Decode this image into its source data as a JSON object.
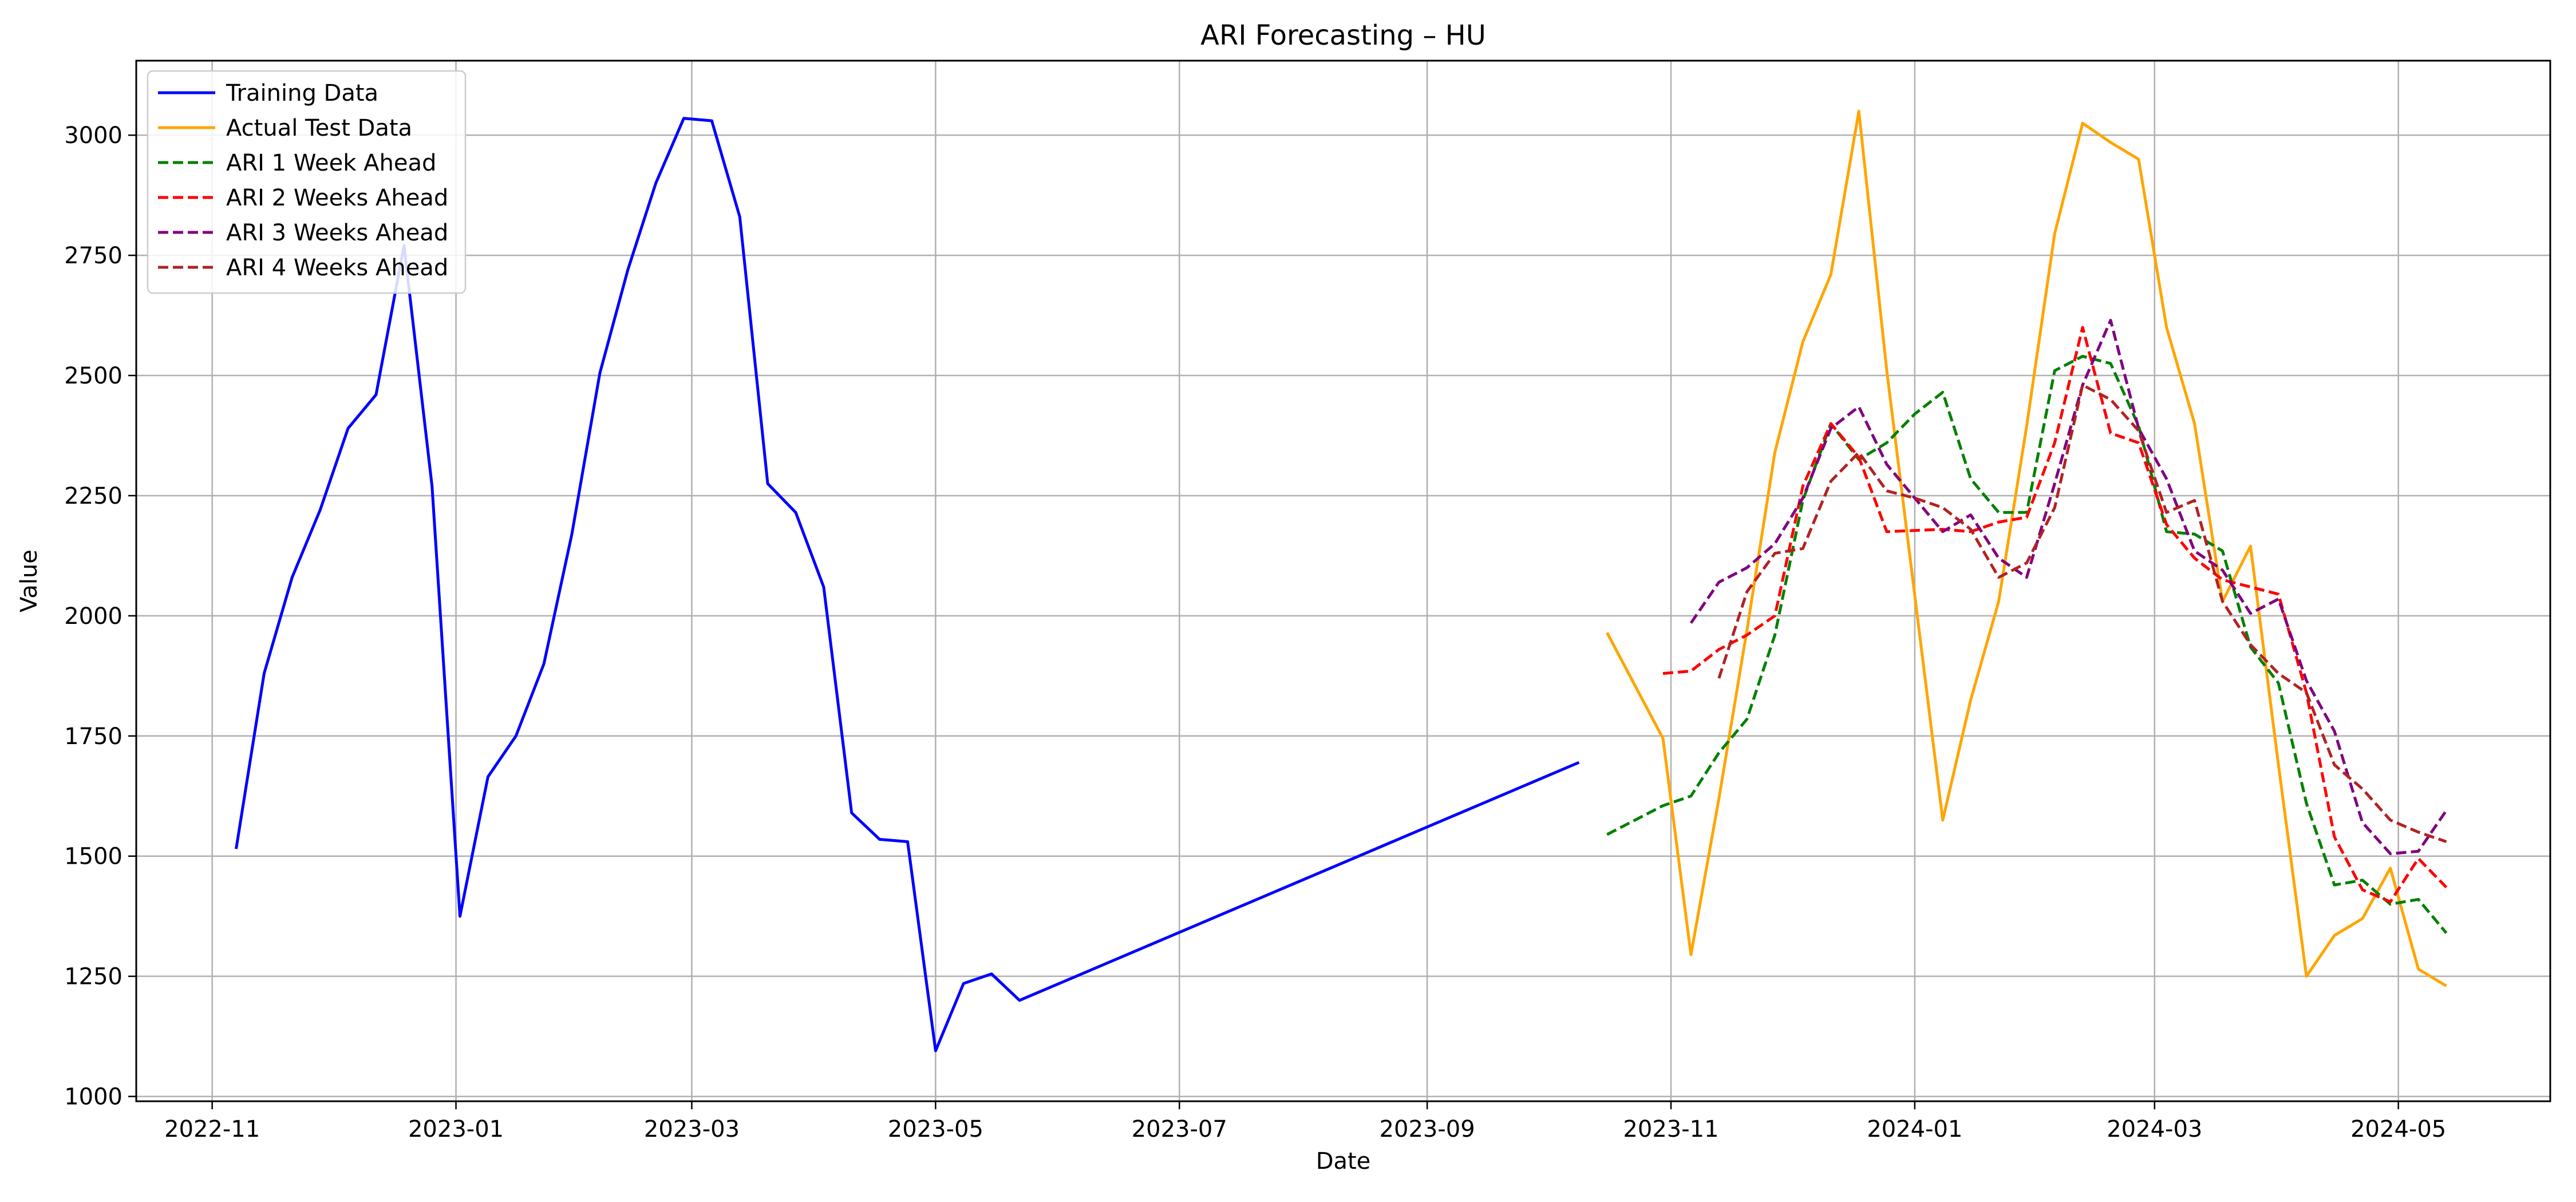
{
  "chart_data": {
    "type": "line",
    "title": "ARI Forecasting – HU",
    "xlabel": "Date",
    "ylabel": "Value",
    "x_is_date": true,
    "xlim": [
      "2022-10-13",
      "2024-06-08"
    ],
    "ylim": [
      990,
      3155
    ],
    "grid": true,
    "legend_position": "top-left",
    "x_ticks": [
      {
        "date": "2022-11-01",
        "label": "2022-11"
      },
      {
        "date": "2023-01-01",
        "label": "2023-01"
      },
      {
        "date": "2023-03-01",
        "label": "2023-03"
      },
      {
        "date": "2023-05-01",
        "label": "2023-05"
      },
      {
        "date": "2023-07-01",
        "label": "2023-07"
      },
      {
        "date": "2023-09-01",
        "label": "2023-09"
      },
      {
        "date": "2023-11-01",
        "label": "2023-11"
      },
      {
        "date": "2024-01-01",
        "label": "2024-01"
      },
      {
        "date": "2024-03-01",
        "label": "2024-03"
      },
      {
        "date": "2024-05-01",
        "label": "2024-05"
      }
    ],
    "y_ticks": [
      {
        "value": 1000,
        "label": "1000"
      },
      {
        "value": 1250,
        "label": "1250"
      },
      {
        "value": 1500,
        "label": "1500"
      },
      {
        "value": 1750,
        "label": "1750"
      },
      {
        "value": 2000,
        "label": "2000"
      },
      {
        "value": 2250,
        "label": "2250"
      },
      {
        "value": 2500,
        "label": "2500"
      },
      {
        "value": 2750,
        "label": "2750"
      },
      {
        "value": 3000,
        "label": "3000"
      }
    ],
    "series": [
      {
        "name": "Training Data",
        "color": "#0000ff",
        "dashed": false,
        "points": [
          [
            "2022-11-07",
            1515
          ],
          [
            "2022-11-14",
            1880
          ],
          [
            "2022-11-21",
            2080
          ],
          [
            "2022-11-28",
            2220
          ],
          [
            "2022-12-05",
            2390
          ],
          [
            "2022-12-12",
            2460
          ],
          [
            "2022-12-19",
            2770
          ],
          [
            "2022-12-26",
            2270
          ],
          [
            "2023-01-02",
            1375
          ],
          [
            "2023-01-09",
            1665
          ],
          [
            "2023-01-16",
            1750
          ],
          [
            "2023-01-23",
            1900
          ],
          [
            "2023-01-30",
            2170
          ],
          [
            "2023-02-06",
            2505
          ],
          [
            "2023-02-13",
            2720
          ],
          [
            "2023-02-20",
            2900
          ],
          [
            "2023-02-27",
            3035
          ],
          [
            "2023-03-06",
            3030
          ],
          [
            "2023-03-13",
            2830
          ],
          [
            "2023-03-20",
            2275
          ],
          [
            "2023-03-27",
            2215
          ],
          [
            "2023-04-03",
            2060
          ],
          [
            "2023-04-10",
            1590
          ],
          [
            "2023-04-17",
            1535
          ],
          [
            "2023-04-24",
            1530
          ],
          [
            "2023-05-01",
            1095
          ],
          [
            "2023-05-08",
            1235
          ],
          [
            "2023-05-15",
            1255
          ],
          [
            "2023-05-22",
            1200
          ],
          [
            "2023-10-09",
            1695
          ]
        ]
      },
      {
        "name": "Actual Test Data",
        "color": "#ffa500",
        "dashed": false,
        "points": [
          [
            "2023-10-16",
            1965
          ],
          [
            "2023-10-30",
            1745
          ],
          [
            "2023-11-06",
            1295
          ],
          [
            "2023-11-13",
            1620
          ],
          [
            "2023-11-20",
            1970
          ],
          [
            "2023-11-27",
            2340
          ],
          [
            "2023-12-04",
            2570
          ],
          [
            "2023-12-11",
            2710
          ],
          [
            "2023-12-18",
            3050
          ],
          [
            "2023-12-25",
            2510
          ],
          [
            "2024-01-08",
            1575
          ],
          [
            "2024-01-15",
            1825
          ],
          [
            "2024-01-22",
            2030
          ],
          [
            "2024-01-29",
            2395
          ],
          [
            "2024-02-05",
            2795
          ],
          [
            "2024-02-12",
            3025
          ],
          [
            "2024-02-19",
            2985
          ],
          [
            "2024-02-26",
            2950
          ],
          [
            "2024-03-04",
            2600
          ],
          [
            "2024-03-11",
            2400
          ],
          [
            "2024-03-18",
            2030
          ],
          [
            "2024-03-25",
            2145
          ],
          [
            "2024-04-01",
            1690
          ],
          [
            "2024-04-08",
            1250
          ],
          [
            "2024-04-15",
            1335
          ],
          [
            "2024-04-22",
            1370
          ],
          [
            "2024-04-29",
            1475
          ],
          [
            "2024-05-06",
            1265
          ],
          [
            "2024-05-13",
            1230
          ]
        ]
      },
      {
        "name": "ARI 1 Week Ahead",
        "color": "#008000",
        "dashed": true,
        "points": [
          [
            "2023-10-16",
            1545
          ],
          [
            "2023-10-30",
            1605
          ],
          [
            "2023-11-06",
            1625
          ],
          [
            "2023-11-13",
            1715
          ],
          [
            "2023-11-20",
            1785
          ],
          [
            "2023-11-27",
            1960
          ],
          [
            "2023-12-04",
            2240
          ],
          [
            "2023-12-11",
            2400
          ],
          [
            "2023-12-18",
            2325
          ],
          [
            "2023-12-25",
            2360
          ],
          [
            "2024-01-01",
            2420
          ],
          [
            "2024-01-08",
            2465
          ],
          [
            "2024-01-15",
            2285
          ],
          [
            "2024-01-22",
            2215
          ],
          [
            "2024-01-29",
            2215
          ],
          [
            "2024-02-05",
            2510
          ],
          [
            "2024-02-12",
            2540
          ],
          [
            "2024-02-19",
            2525
          ],
          [
            "2024-02-26",
            2395
          ],
          [
            "2024-03-04",
            2175
          ],
          [
            "2024-03-11",
            2170
          ],
          [
            "2024-03-18",
            2135
          ],
          [
            "2024-03-25",
            1935
          ],
          [
            "2024-04-01",
            1860
          ],
          [
            "2024-04-08",
            1610
          ],
          [
            "2024-04-15",
            1440
          ],
          [
            "2024-04-22",
            1450
          ],
          [
            "2024-04-29",
            1400
          ],
          [
            "2024-05-06",
            1410
          ],
          [
            "2024-05-13",
            1340
          ]
        ]
      },
      {
        "name": "ARI 2 Weeks Ahead",
        "color": "#ff0000",
        "dashed": true,
        "points": [
          [
            "2023-10-30",
            1880
          ],
          [
            "2023-11-06",
            1885
          ],
          [
            "2023-11-13",
            1930
          ],
          [
            "2023-11-20",
            1960
          ],
          [
            "2023-11-27",
            2000
          ],
          [
            "2023-12-04",
            2270
          ],
          [
            "2023-12-11",
            2400
          ],
          [
            "2023-12-18",
            2330
          ],
          [
            "2023-12-25",
            2175
          ],
          [
            "2024-01-08",
            2180
          ],
          [
            "2024-01-15",
            2175
          ],
          [
            "2024-01-22",
            2195
          ],
          [
            "2024-01-29",
            2205
          ],
          [
            "2024-02-05",
            2360
          ],
          [
            "2024-02-12",
            2600
          ],
          [
            "2024-02-19",
            2380
          ],
          [
            "2024-02-26",
            2360
          ],
          [
            "2024-03-04",
            2190
          ],
          [
            "2024-03-11",
            2120
          ],
          [
            "2024-03-18",
            2075
          ],
          [
            "2024-03-25",
            2060
          ],
          [
            "2024-04-01",
            2045
          ],
          [
            "2024-04-08",
            1840
          ],
          [
            "2024-04-15",
            1540
          ],
          [
            "2024-04-22",
            1430
          ],
          [
            "2024-04-29",
            1405
          ],
          [
            "2024-05-06",
            1495
          ],
          [
            "2024-05-13",
            1435
          ]
        ]
      },
      {
        "name": "ARI 3 Weeks Ahead",
        "color": "#800080",
        "dashed": true,
        "points": [
          [
            "2023-11-06",
            1985
          ],
          [
            "2023-11-13",
            2070
          ],
          [
            "2023-11-20",
            2100
          ],
          [
            "2023-11-27",
            2150
          ],
          [
            "2023-12-04",
            2245
          ],
          [
            "2023-12-11",
            2390
          ],
          [
            "2023-12-18",
            2435
          ],
          [
            "2023-12-25",
            2315
          ],
          [
            "2024-01-01",
            2245
          ],
          [
            "2024-01-08",
            2175
          ],
          [
            "2024-01-15",
            2210
          ],
          [
            "2024-01-22",
            2120
          ],
          [
            "2024-01-29",
            2080
          ],
          [
            "2024-02-05",
            2275
          ],
          [
            "2024-02-12",
            2480
          ],
          [
            "2024-02-19",
            2615
          ],
          [
            "2024-02-26",
            2390
          ],
          [
            "2024-03-04",
            2285
          ],
          [
            "2024-03-11",
            2135
          ],
          [
            "2024-03-18",
            2095
          ],
          [
            "2024-03-25",
            2005
          ],
          [
            "2024-04-01",
            2035
          ],
          [
            "2024-04-08",
            1865
          ],
          [
            "2024-04-15",
            1760
          ],
          [
            "2024-04-22",
            1570
          ],
          [
            "2024-04-29",
            1505
          ],
          [
            "2024-05-06",
            1510
          ],
          [
            "2024-05-13",
            1595
          ]
        ]
      },
      {
        "name": "ARI 4 Weeks Ahead",
        "color": "#b22222",
        "dashed": true,
        "points": [
          [
            "2023-11-13",
            1870
          ],
          [
            "2023-11-20",
            2050
          ],
          [
            "2023-11-27",
            2130
          ],
          [
            "2023-12-04",
            2140
          ],
          [
            "2023-12-11",
            2280
          ],
          [
            "2023-12-18",
            2340
          ],
          [
            "2023-12-25",
            2260
          ],
          [
            "2024-01-01",
            2245
          ],
          [
            "2024-01-08",
            2225
          ],
          [
            "2024-01-15",
            2180
          ],
          [
            "2024-01-22",
            2080
          ],
          [
            "2024-01-29",
            2110
          ],
          [
            "2024-02-05",
            2225
          ],
          [
            "2024-02-12",
            2480
          ],
          [
            "2024-02-19",
            2450
          ],
          [
            "2024-02-26",
            2385
          ],
          [
            "2024-03-04",
            2215
          ],
          [
            "2024-03-11",
            2240
          ],
          [
            "2024-03-18",
            2030
          ],
          [
            "2024-03-25",
            1940
          ],
          [
            "2024-04-01",
            1880
          ],
          [
            "2024-04-08",
            1840
          ],
          [
            "2024-04-15",
            1690
          ],
          [
            "2024-04-22",
            1640
          ],
          [
            "2024-04-29",
            1575
          ],
          [
            "2024-05-06",
            1550
          ],
          [
            "2024-05-13",
            1530
          ]
        ]
      }
    ]
  }
}
